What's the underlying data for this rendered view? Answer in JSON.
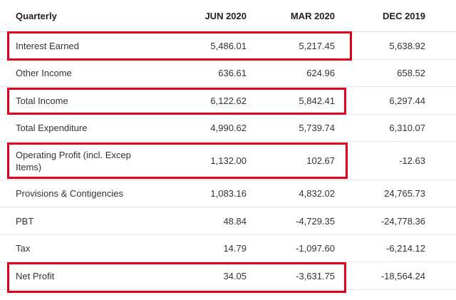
{
  "table": {
    "header": [
      "Quarterly",
      "JUN 2020",
      "MAR 2020",
      "DEC 2019"
    ],
    "rows": [
      [
        "Interest Earned",
        "5,486.01",
        "5,217.45",
        "5,638.92"
      ],
      [
        "Other Income",
        "636.61",
        "624.96",
        "658.52"
      ],
      [
        "Total Income",
        "6,122.62",
        "5,842.41",
        "6,297.44"
      ],
      [
        "Total Expenditure",
        "4,990.62",
        "5,739.74",
        "6,310.07"
      ],
      [
        "Operating Profit (incl. Excep Items)",
        "1,132.00",
        "102.67",
        "-12.63"
      ],
      [
        "Provisions & Contigencies",
        "1,083.16",
        "4,832.02",
        "24,765.73"
      ],
      [
        "PBT",
        "48.84",
        "-4,729.35",
        "-24,778.36"
      ],
      [
        "Tax",
        "14.79",
        "-1,097.60",
        "-6,214.12"
      ],
      [
        "Net Profit",
        "34.05",
        "-3,631.75",
        "-18,564.24"
      ]
    ]
  }
}
